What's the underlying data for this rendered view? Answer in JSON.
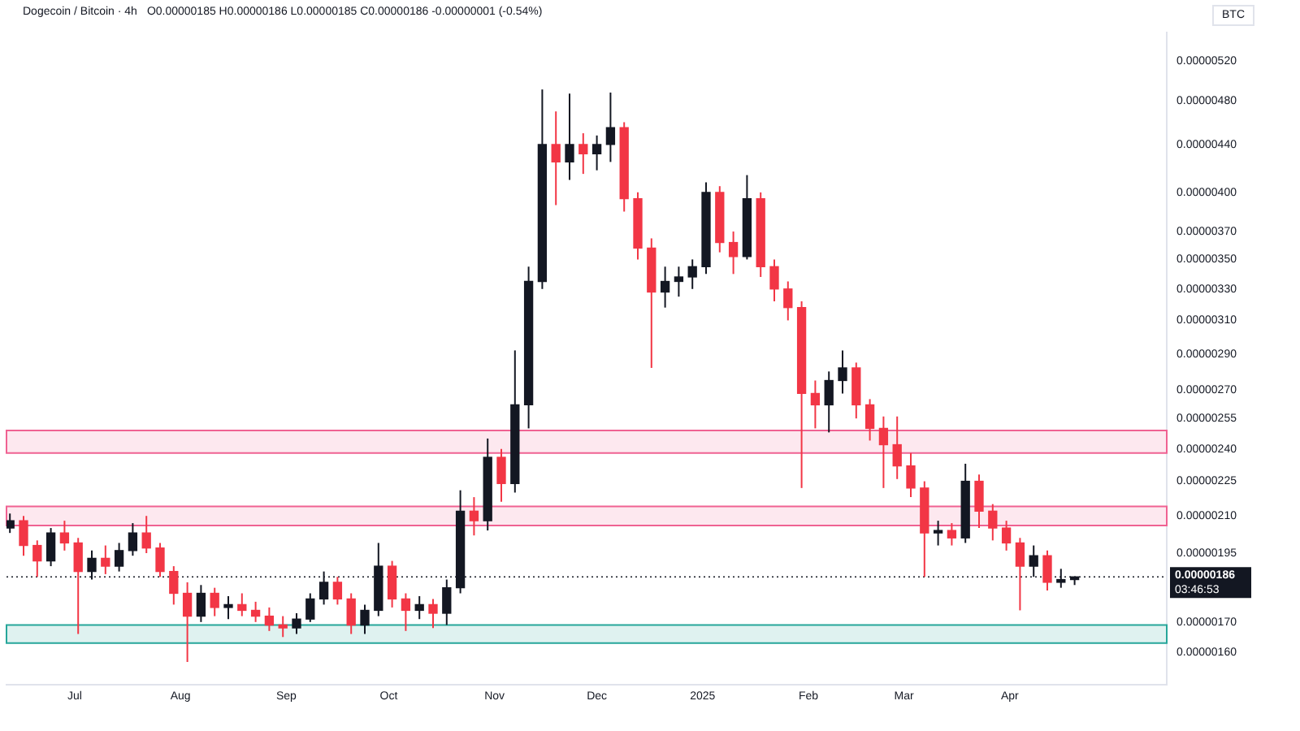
{
  "chart_data": {
    "type": "candlestick",
    "title": "Dogecoin / Bitcoin · 4h",
    "subtitle": "O0.00000185 H0.00000186 L0.00000185 C0.00000186 -0.00000001 (-0.54%)",
    "ylabel": "BTC",
    "annotations": [
      "03:46:53"
    ],
    "x": [
      "2024-06-12",
      "2024-06-16",
      "2024-06-20",
      "2024-06-24",
      "2024-06-28",
      "2024-07-02",
      "2024-07-06",
      "2024-07-10",
      "2024-07-14",
      "2024-07-18",
      "2024-07-22",
      "2024-07-26",
      "2024-07-30",
      "2024-08-03",
      "2024-08-07",
      "2024-08-11",
      "2024-08-15",
      "2024-08-19",
      "2024-08-23",
      "2024-08-27",
      "2024-08-31",
      "2024-09-04",
      "2024-09-08",
      "2024-09-12",
      "2024-09-16",
      "2024-09-20",
      "2024-09-24",
      "2024-09-28",
      "2024-10-02",
      "2024-10-06",
      "2024-10-10",
      "2024-10-14",
      "2024-10-18",
      "2024-10-22",
      "2024-10-26",
      "2024-10-30",
      "2024-11-03",
      "2024-11-07",
      "2024-11-11",
      "2024-11-15",
      "2024-11-19",
      "2024-11-23",
      "2024-11-27",
      "2024-12-01",
      "2024-12-05",
      "2024-12-09",
      "2024-12-13",
      "2024-12-17",
      "2024-12-21",
      "2024-12-25",
      "2024-12-29",
      "2025-01-02",
      "2025-01-06",
      "2025-01-10",
      "2025-01-14",
      "2025-01-18",
      "2025-01-22",
      "2025-01-26",
      "2025-01-30",
      "2025-02-03",
      "2025-02-07",
      "2025-02-11",
      "2025-02-15",
      "2025-02-19",
      "2025-02-23",
      "2025-02-27",
      "2025-03-03",
      "2025-03-07",
      "2025-03-11",
      "2025-03-15",
      "2025-03-19",
      "2025-03-23",
      "2025-03-27",
      "2025-03-31",
      "2025-04-04",
      "2025-04-08",
      "2025-04-12",
      "2025-04-16",
      "2025-04-20"
    ],
    "ohlc": [
      [
        2.05e-06,
        2.11e-06,
        2.03e-06,
        2.08e-06
      ],
      [
        2.08e-06,
        2.1e-06,
        1.94e-06,
        1.98e-06
      ],
      [
        1.98e-06,
        2e-06,
        1.86e-06,
        1.92e-06
      ],
      [
        1.92e-06,
        2.05e-06,
        1.9e-06,
        2.03e-06
      ],
      [
        2.03e-06,
        2.08e-06,
        1.96e-06,
        1.99e-06
      ],
      [
        1.99e-06,
        2.01e-06,
        1.66e-06,
        1.88e-06
      ],
      [
        1.88e-06,
        1.96e-06,
        1.85e-06,
        1.93e-06
      ],
      [
        1.93e-06,
        1.98e-06,
        1.87e-06,
        1.9e-06
      ],
      [
        1.9e-06,
        1.99e-06,
        1.88e-06,
        1.96e-06
      ],
      [
        1.96e-06,
        2.07e-06,
        1.94e-06,
        2.03e-06
      ],
      [
        2.03e-06,
        2.1e-06,
        1.95e-06,
        1.97e-06
      ],
      [
        1.97e-06,
        1.99e-06,
        1.86e-06,
        1.88e-06
      ],
      [
        1.88e-06,
        1.9e-06,
        1.76e-06,
        1.8e-06
      ],
      [
        1.8e-06,
        1.84e-06,
        1.57e-06,
        1.72e-06
      ],
      [
        1.72e-06,
        1.83e-06,
        1.7e-06,
        1.8e-06
      ],
      [
        1.8e-06,
        1.82e-06,
        1.72e-06,
        1.75e-06
      ],
      [
        1.75e-06,
        1.79e-06,
        1.71e-06,
        1.76e-06
      ],
      [
        1.76e-06,
        1.8e-06,
        1.72e-06,
        1.74e-06
      ],
      [
        1.74e-06,
        1.77e-06,
        1.7e-06,
        1.72e-06
      ],
      [
        1.72e-06,
        1.75e-06,
        1.67e-06,
        1.69e-06
      ],
      [
        1.69e-06,
        1.72e-06,
        1.65e-06,
        1.68e-06
      ],
      [
        1.68e-06,
        1.73e-06,
        1.66e-06,
        1.71e-06
      ],
      [
        1.71e-06,
        1.8e-06,
        1.7e-06,
        1.78e-06
      ],
      [
        1.78e-06,
        1.88e-06,
        1.76e-06,
        1.84e-06
      ],
      [
        1.84e-06,
        1.86e-06,
        1.76e-06,
        1.78e-06
      ],
      [
        1.78e-06,
        1.8e-06,
        1.66e-06,
        1.69e-06
      ],
      [
        1.69e-06,
        1.76e-06,
        1.66e-06,
        1.74e-06
      ],
      [
        1.74e-06,
        1.99e-06,
        1.72e-06,
        1.9e-06
      ],
      [
        1.9e-06,
        1.92e-06,
        1.75e-06,
        1.78e-06
      ],
      [
        1.78e-06,
        1.8e-06,
        1.67e-06,
        1.74e-06
      ],
      [
        1.74e-06,
        1.79e-06,
        1.71e-06,
        1.76e-06
      ],
      [
        1.76e-06,
        1.78e-06,
        1.68e-06,
        1.73e-06
      ],
      [
        1.73e-06,
        1.85e-06,
        1.69e-06,
        1.82e-06
      ],
      [
        1.82e-06,
        2.21e-06,
        1.8e-06,
        2.12e-06
      ],
      [
        2.12e-06,
        2.18e-06,
        2.02e-06,
        2.08e-06
      ],
      [
        2.08e-06,
        2.45e-06,
        2.04e-06,
        2.36e-06
      ],
      [
        2.36e-06,
        2.4e-06,
        2.16e-06,
        2.24e-06
      ],
      [
        2.24e-06,
        2.92e-06,
        2.2e-06,
        2.62e-06
      ],
      [
        2.62e-06,
        3.45e-06,
        2.5e-06,
        3.35e-06
      ],
      [
        3.35e-06,
        4.91e-06,
        3.3e-06,
        4.4e-06
      ],
      [
        4.4e-06,
        4.7e-06,
        3.9e-06,
        4.25e-06
      ],
      [
        4.25e-06,
        4.87e-06,
        4.1e-06,
        4.4e-06
      ],
      [
        4.4e-06,
        4.5e-06,
        4.15e-06,
        4.32e-06
      ],
      [
        4.32e-06,
        4.48e-06,
        4.18e-06,
        4.4e-06
      ],
      [
        4.4e-06,
        4.88e-06,
        4.25e-06,
        4.55e-06
      ],
      [
        4.55e-06,
        4.6e-06,
        3.85e-06,
        3.95e-06
      ],
      [
        3.95e-06,
        4e-06,
        3.5e-06,
        3.58e-06
      ],
      [
        3.58e-06,
        3.65e-06,
        2.82e-06,
        3.28e-06
      ],
      [
        3.28e-06,
        3.45e-06,
        3.18e-06,
        3.35e-06
      ],
      [
        3.35e-06,
        3.45e-06,
        3.25e-06,
        3.38e-06
      ],
      [
        3.38e-06,
        3.5e-06,
        3.3e-06,
        3.45e-06
      ],
      [
        3.45e-06,
        4.08e-06,
        3.4e-06,
        4e-06
      ],
      [
        4e-06,
        4.05e-06,
        3.55e-06,
        3.62e-06
      ],
      [
        3.62e-06,
        3.7e-06,
        3.4e-06,
        3.52e-06
      ],
      [
        3.52e-06,
        4.14e-06,
        3.5e-06,
        3.95e-06
      ],
      [
        3.95e-06,
        4e-06,
        3.38e-06,
        3.45e-06
      ],
      [
        3.45e-06,
        3.5e-06,
        3.22e-06,
        3.3e-06
      ],
      [
        3.3e-06,
        3.35e-06,
        3.1e-06,
        3.18e-06
      ],
      [
        3.18e-06,
        3.22e-06,
        2.22e-06,
        2.68e-06
      ],
      [
        2.68e-06,
        2.75e-06,
        2.5e-06,
        2.62e-06
      ],
      [
        2.62e-06,
        2.8e-06,
        2.48e-06,
        2.75e-06
      ],
      [
        2.75e-06,
        2.92e-06,
        2.68e-06,
        2.82e-06
      ],
      [
        2.82e-06,
        2.85e-06,
        2.55e-06,
        2.62e-06
      ],
      [
        2.62e-06,
        2.65e-06,
        2.44e-06,
        2.5e-06
      ],
      [
        2.5e-06,
        2.56e-06,
        2.22e-06,
        2.42e-06
      ],
      [
        2.42e-06,
        2.56e-06,
        2.26e-06,
        2.32e-06
      ],
      [
        2.32e-06,
        2.38e-06,
        2.18e-06,
        2.22e-06
      ],
      [
        2.22e-06,
        2.25e-06,
        1.86e-06,
        2.03e-06
      ],
      [
        2.03e-06,
        2.08e-06,
        1.98e-06,
        2.04e-06
      ],
      [
        2.04e-06,
        2.07e-06,
        1.98e-06,
        2.01e-06
      ],
      [
        2.01e-06,
        2.33e-06,
        1.99e-06,
        2.25e-06
      ],
      [
        2.25e-06,
        2.28e-06,
        2.05e-06,
        2.12e-06
      ],
      [
        2.12e-06,
        2.15e-06,
        2e-06,
        2.05e-06
      ],
      [
        2.05e-06,
        2.08e-06,
        1.96e-06,
        1.99e-06
      ],
      [
        1.99e-06,
        2.01e-06,
        1.74e-06,
        1.9e-06
      ],
      [
        1.9e-06,
        1.98e-06,
        1.86e-06,
        1.94e-06
      ],
      [
        1.94e-06,
        1.96e-06,
        1.81e-06,
        1.84e-06
      ],
      [
        1.84e-06,
        1.89e-06,
        1.82e-06,
        1.85e-06
      ],
      [
        1.85e-06,
        1.86e-06,
        1.83e-06,
        1.86e-06
      ]
    ],
    "colors": [
      "#131722",
      "#f23645",
      "#f23645",
      "#131722",
      "#f23645",
      "#f23645",
      "#131722",
      "#f23645",
      "#131722",
      "#131722",
      "#f23645",
      "#f23645",
      "#f23645",
      "#f23645",
      "#131722",
      "#f23645",
      "#131722",
      "#f23645",
      "#f23645",
      "#f23645",
      "#f23645",
      "#131722",
      "#131722",
      "#131722",
      "#f23645",
      "#f23645",
      "#131722",
      "#131722",
      "#f23645",
      "#f23645",
      "#131722",
      "#f23645",
      "#131722",
      "#131722",
      "#f23645",
      "#131722",
      "#f23645",
      "#131722",
      "#131722",
      "#131722",
      "#f23645",
      "#131722",
      "#f23645",
      "#131722",
      "#131722",
      "#f23645",
      "#f23645",
      "#f23645",
      "#131722",
      "#131722",
      "#131722",
      "#131722",
      "#f23645",
      "#f23645",
      "#131722",
      "#f23645",
      "#f23645",
      "#f23645",
      "#f23645",
      "#f23645",
      "#131722",
      "#131722",
      "#f23645",
      "#f23645",
      "#f23645",
      "#f23645",
      "#f23645",
      "#f23645",
      "#131722",
      "#f23645",
      "#131722",
      "#f23645",
      "#f23645",
      "#f23645",
      "#f23645",
      "#131722",
      "#f23645",
      "#131722",
      "#131722"
    ],
    "xlim": [
      "2024-06-11",
      "2025-05-17"
    ],
    "xticks": [
      {
        "value": "2024-07-01",
        "label": "Jul"
      },
      {
        "value": "2024-08-01",
        "label": "Aug"
      },
      {
        "value": "2024-09-01",
        "label": "Sep"
      },
      {
        "value": "2024-10-01",
        "label": "Oct"
      },
      {
        "value": "2024-11-01",
        "label": "Nov"
      },
      {
        "value": "2024-12-01",
        "label": "Dec"
      },
      {
        "value": "2025-01-01",
        "label": "2025"
      },
      {
        "value": "2025-02-01",
        "label": "Feb"
      },
      {
        "value": "2025-03-01",
        "label": "Mar"
      },
      {
        "value": "2025-04-01",
        "label": "Apr"
      }
    ],
    "ylim": [
      1.5e-06,
      5.5e-06
    ],
    "log": "y",
    "yticks": [
      {
        "value": 5.2e-06,
        "label": "0.00000520"
      },
      {
        "value": 4.8e-06,
        "label": "0.00000480"
      },
      {
        "value": 4.4e-06,
        "label": "0.00000440"
      },
      {
        "value": 4e-06,
        "label": "0.00000400"
      },
      {
        "value": 3.7e-06,
        "label": "0.00000370"
      },
      {
        "value": 3.5e-06,
        "label": "0.00000350"
      },
      {
        "value": 3.3e-06,
        "label": "0.00000330"
      },
      {
        "value": 3.1e-06,
        "label": "0.00000310"
      },
      {
        "value": 2.9e-06,
        "label": "0.00000290"
      },
      {
        "value": 2.7e-06,
        "label": "0.00000270"
      },
      {
        "value": 2.55e-06,
        "label": "0.00000255"
      },
      {
        "value": 2.4e-06,
        "label": "0.00000240"
      },
      {
        "value": 2.25e-06,
        "label": "0.00000225"
      },
      {
        "value": 2.1e-06,
        "label": "0.00000210"
      },
      {
        "value": 1.95e-06,
        "label": "0.00000195"
      },
      {
        "value": 1.7e-06,
        "label": "0.00000170"
      },
      {
        "value": 1.6e-06,
        "label": "0.00000160"
      }
    ],
    "ref_lines": [
      {
        "axis": "y",
        "value": 1.86e-06,
        "label": "0.00000186",
        "color": "#131722",
        "line_style": "dotted"
      }
    ],
    "bands": [
      {
        "axis": "y",
        "from": 2.38e-06,
        "to": 2.49e-06,
        "color": "#f06292"
      },
      {
        "axis": "y",
        "from": 2.06e-06,
        "to": 2.14e-06,
        "color": "#f06292"
      },
      {
        "axis": "y",
        "from": 1.63e-06,
        "to": 1.69e-06,
        "color": "#26a69a"
      }
    ]
  }
}
